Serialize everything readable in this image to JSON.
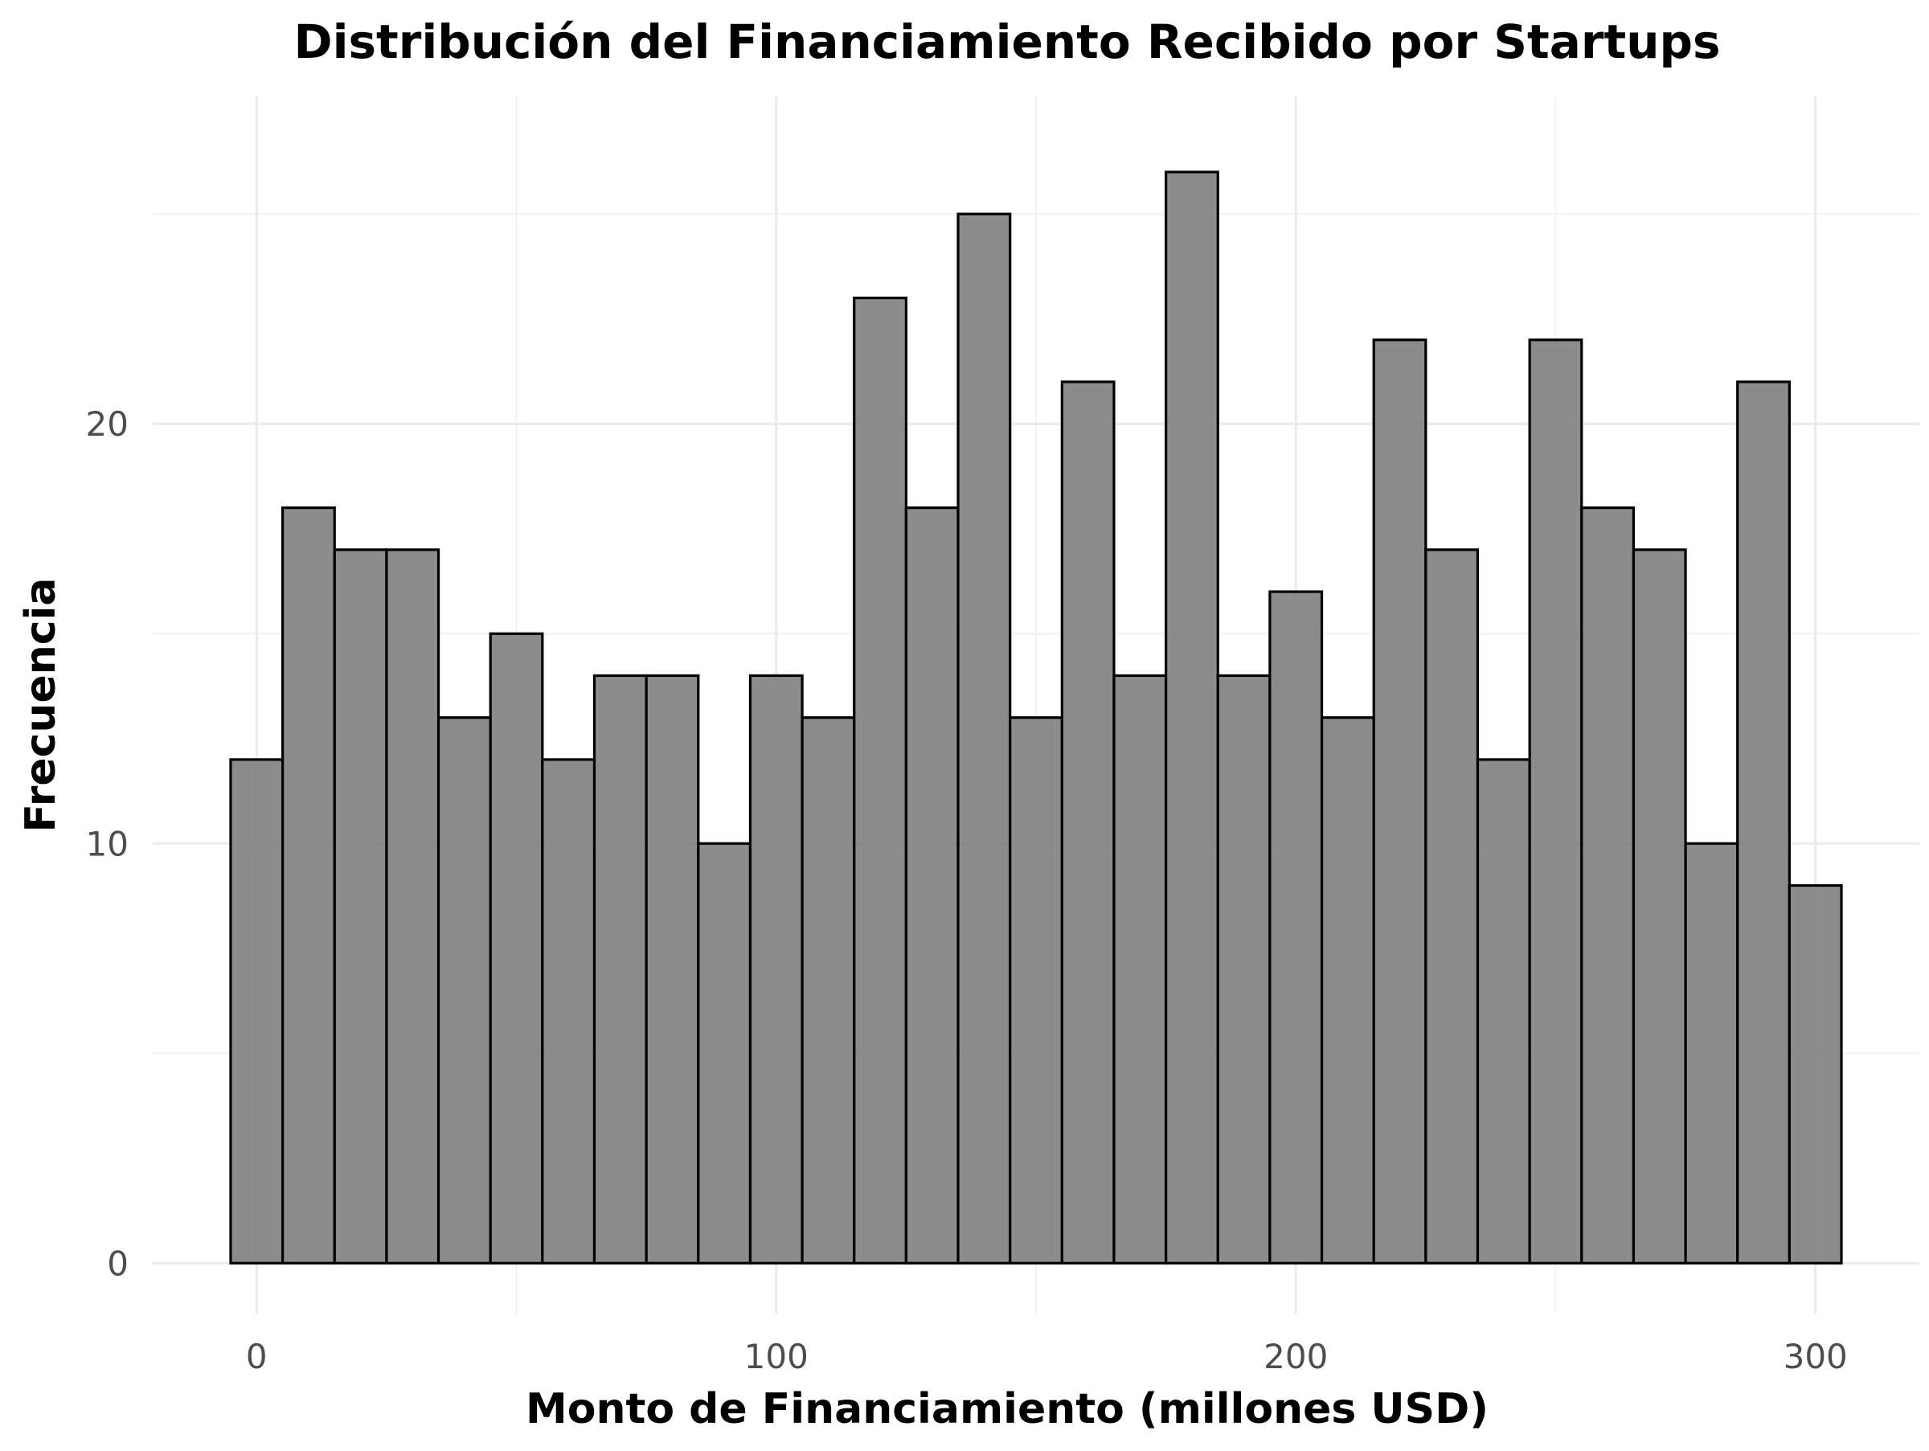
{
  "chart_data": {
    "type": "bar",
    "title": "Distribución del Financiamiento Recibido por Startups",
    "xlabel": "Monto de Financiamiento (millones USD)",
    "ylabel": "Frecuencia",
    "bin_width": 10,
    "bins": [
      {
        "start": -5,
        "end": 5,
        "count": 12
      },
      {
        "start": 5,
        "end": 15,
        "count": 18
      },
      {
        "start": 15,
        "end": 25,
        "count": 17
      },
      {
        "start": 25,
        "end": 35,
        "count": 17
      },
      {
        "start": 35,
        "end": 45,
        "count": 13
      },
      {
        "start": 45,
        "end": 55,
        "count": 15
      },
      {
        "start": 55,
        "end": 65,
        "count": 12
      },
      {
        "start": 65,
        "end": 75,
        "count": 14
      },
      {
        "start": 75,
        "end": 85,
        "count": 14
      },
      {
        "start": 85,
        "end": 95,
        "count": 10
      },
      {
        "start": 95,
        "end": 105,
        "count": 14
      },
      {
        "start": 105,
        "end": 115,
        "count": 13
      },
      {
        "start": 115,
        "end": 125,
        "count": 23
      },
      {
        "start": 125,
        "end": 135,
        "count": 18
      },
      {
        "start": 135,
        "end": 145,
        "count": 25
      },
      {
        "start": 145,
        "end": 155,
        "count": 13
      },
      {
        "start": 155,
        "end": 165,
        "count": 21
      },
      {
        "start": 165,
        "end": 175,
        "count": 14
      },
      {
        "start": 175,
        "end": 185,
        "count": 26
      },
      {
        "start": 185,
        "end": 195,
        "count": 14
      },
      {
        "start": 195,
        "end": 205,
        "count": 16
      },
      {
        "start": 205,
        "end": 215,
        "count": 13
      },
      {
        "start": 215,
        "end": 225,
        "count": 22
      },
      {
        "start": 225,
        "end": 235,
        "count": 17
      },
      {
        "start": 235,
        "end": 245,
        "count": 12
      },
      {
        "start": 245,
        "end": 255,
        "count": 22
      },
      {
        "start": 255,
        "end": 265,
        "count": 18
      },
      {
        "start": 265,
        "end": 275,
        "count": 17
      },
      {
        "start": 275,
        "end": 285,
        "count": 10
      },
      {
        "start": 285,
        "end": 295,
        "count": 21
      },
      {
        "start": 295,
        "end": 305,
        "count": 9
      }
    ],
    "xlim": [
      -20,
      320
    ],
    "ylim": [
      -1.2,
      27.8
    ],
    "x_major_ticks": [
      0,
      100,
      200,
      300
    ],
    "x_tick_labels": [
      "0",
      "100",
      "200",
      "300"
    ],
    "x_minor_gridlines": [
      50,
      150,
      250
    ],
    "y_major_ticks": [
      0,
      10,
      20
    ],
    "y_tick_labels": [
      "0",
      "10",
      "20"
    ],
    "y_minor_gridlines": [
      5,
      15,
      25
    ],
    "grid": true,
    "legend": "none",
    "colors": {
      "bar_fill": "#7f7f7f",
      "bar_outline": "#000000",
      "grid_major": "#ebebeb",
      "grid_minor": "#f2f2f2",
      "tick_text": "#4d4d4d",
      "background": "#ffffff"
    }
  }
}
